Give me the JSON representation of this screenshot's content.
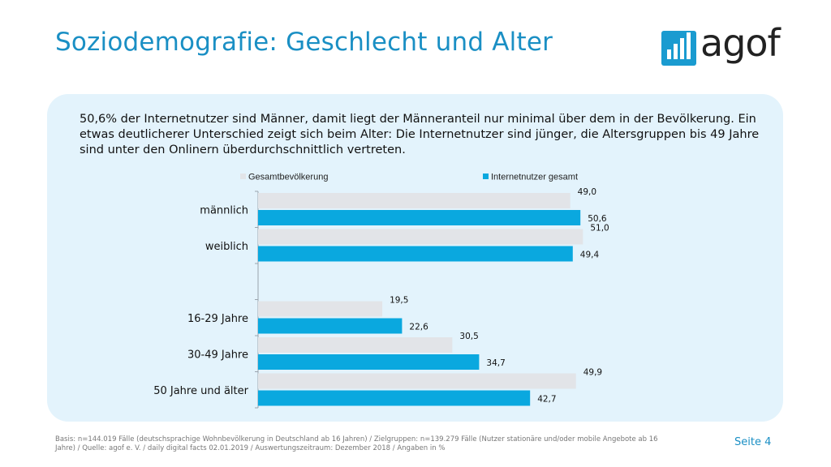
{
  "title": "Soziodemografie: Geschlecht und Alter",
  "logo": {
    "text": "agof"
  },
  "intro": "50,6% der Internetnutzer sind Männer, damit liegt der Männeranteil nur minimal über dem in der Bevölkerung. Ein etwas deutlicherer Unterschied zeigt sich beim Alter: Die Internetnutzer sind jünger, die Altersgruppen bis 49 Jahre sind unter den Onlinern überdurchschnittlich vertreten.",
  "chart_data": {
    "type": "bar",
    "orientation": "horizontal",
    "categories": [
      "männlich",
      "weiblich",
      "",
      "16-29 Jahre",
      "30-49 Jahre",
      "50 Jahre und älter"
    ],
    "series": [
      {
        "name": "Gesamtbevölkerung",
        "color": "#e2e4e8",
        "values": [
          49.0,
          51.0,
          null,
          19.5,
          30.5,
          49.9
        ],
        "labels": [
          "49,0",
          "51,0",
          "",
          "19,5",
          "30,5",
          "49,9"
        ]
      },
      {
        "name": "Internetnutzer gesamt",
        "color": "#0aa8df",
        "values": [
          50.6,
          49.4,
          null,
          22.6,
          34.7,
          42.7
        ],
        "labels": [
          "50,6",
          "49,4",
          "",
          "22,6",
          "34,7",
          "42,7"
        ]
      }
    ],
    "xlim": [
      0,
      55
    ],
    "legend": "top",
    "grid": false
  },
  "footnote": "Basis: n=144.019 Fälle (deutschsprachige Wohnbevölkerung in Deutschland ab 16 Jahren) / Zielgruppen: n=139.279 Fälle (Nutzer stationäre und/oder mobile Angebote ab 16 Jahre) / Quelle: agof e. V. / daily digital facts 02.01.2019 / Auswertungszeitraum: Dezember 2018 / Angaben in %",
  "page_label": "Seite 4"
}
